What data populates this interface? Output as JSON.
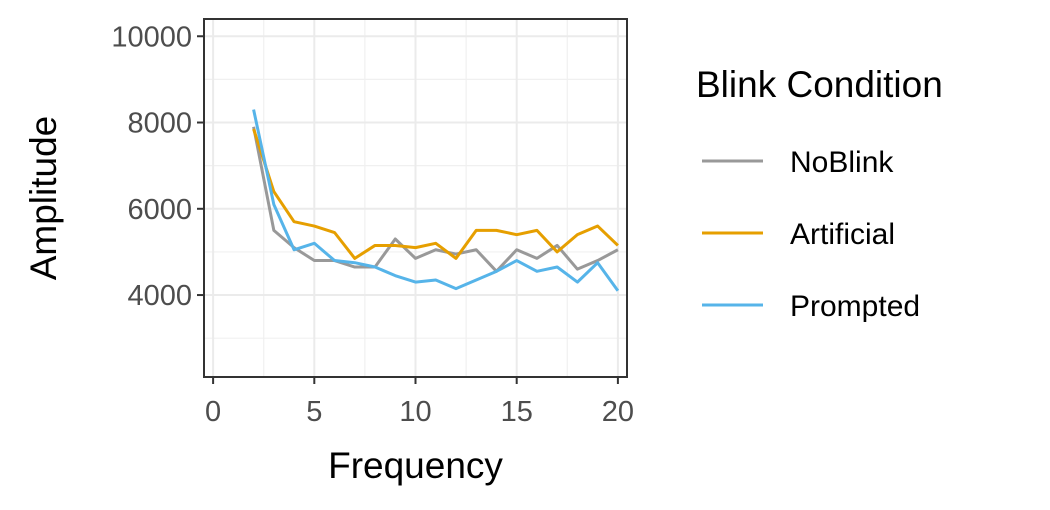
{
  "chart_data": {
    "type": "line",
    "xlabel": "Frequency",
    "ylabel": "Amplitude",
    "xlim": [
      -0.45,
      20.45
    ],
    "ylim": [
      2100,
      10400
    ],
    "x_ticks": [
      0,
      5,
      10,
      15,
      20
    ],
    "x_tick_labels": [
      "0",
      "5",
      "10",
      "15",
      "20"
    ],
    "y_ticks": [
      4000,
      6000,
      8000,
      10000
    ],
    "y_tick_labels": [
      "4000",
      "6000",
      "8000",
      "10000"
    ],
    "grid": true,
    "legend": {
      "title": "Blink Condition",
      "position": "right"
    },
    "x": [
      2,
      3,
      4,
      5,
      6,
      7,
      8,
      9,
      10,
      11,
      12,
      13,
      14,
      15,
      16,
      17,
      18,
      19,
      20
    ],
    "series": [
      {
        "name": "NoBlink",
        "color": "#999999",
        "values": [
          7900,
          5500,
          5100,
          4800,
          4800,
          4650,
          4650,
          5300,
          4850,
          5050,
          4950,
          5050,
          4550,
          5050,
          4850,
          5150,
          4600,
          4800,
          5050
        ]
      },
      {
        "name": "Artificial",
        "color": "#E69F00",
        "values": [
          7850,
          6400,
          5700,
          5600,
          5450,
          4850,
          5150,
          5150,
          5100,
          5200,
          4850,
          5500,
          5500,
          5400,
          5500,
          5000,
          5400,
          5600,
          5150
        ]
      },
      {
        "name": "Prompted",
        "color": "#56B4E9",
        "values": [
          8300,
          6100,
          5050,
          5200,
          4800,
          4750,
          4650,
          4450,
          4300,
          4350,
          4150,
          4350,
          4550,
          4800,
          4550,
          4650,
          4300,
          4750,
          4100
        ]
      }
    ]
  }
}
